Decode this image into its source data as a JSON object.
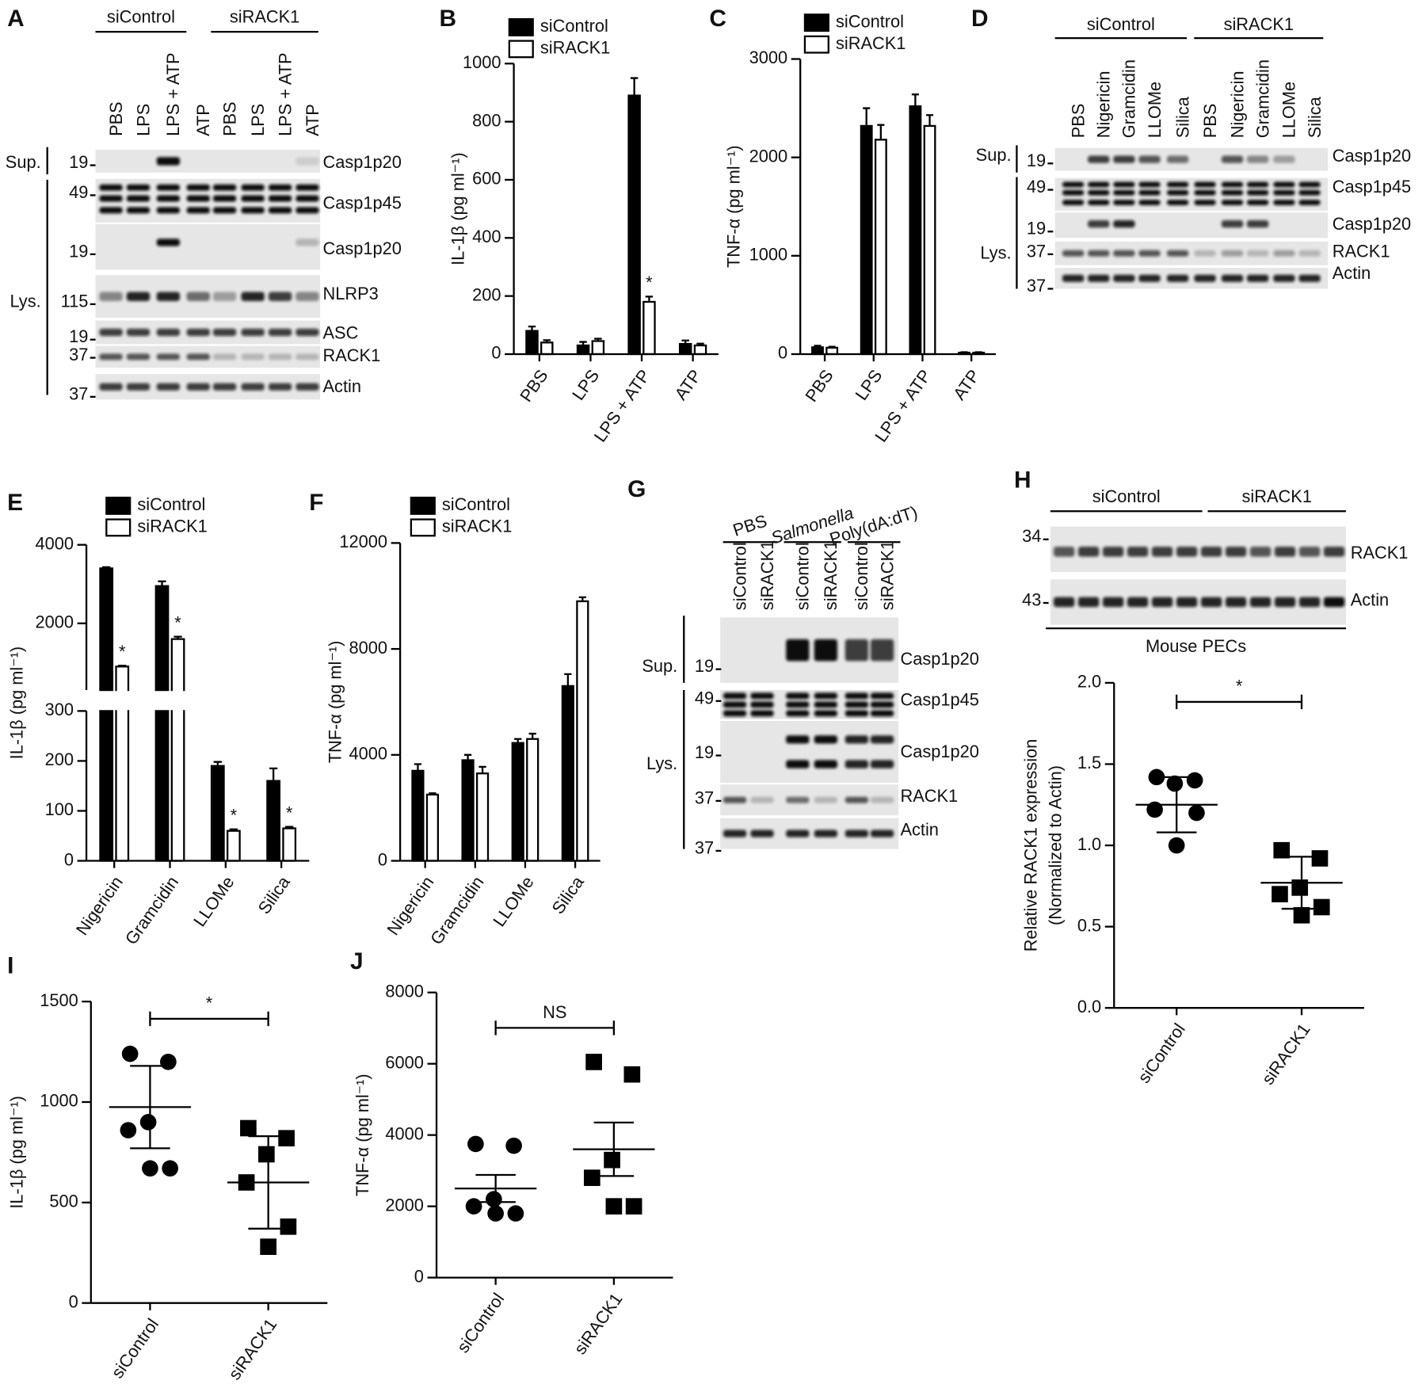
{
  "chart_data": [
    {
      "label": "B",
      "type": "bar",
      "y_label": "IL-1β (pg ml⁻¹)",
      "categories": [
        "PBS",
        "LPS",
        "LPS + ATP",
        "ATP"
      ],
      "series": [
        {
          "name": "siControl",
          "color": "#000000",
          "values": [
            80,
            30,
            890,
            35
          ],
          "errors": [
            15,
            12,
            60,
            12
          ]
        },
        {
          "name": "siRACK1",
          "color": "#ffffff",
          "values": [
            40,
            45,
            180,
            30
          ],
          "errors": [
            8,
            8,
            18,
            6
          ],
          "sig": [
            null,
            null,
            "*",
            null
          ]
        }
      ],
      "ylim": [
        0,
        1000
      ],
      "yticks": [
        0,
        200,
        400,
        600,
        800,
        1000
      ]
    },
    {
      "label": "C",
      "type": "bar",
      "y_label": "TNF-α (pg ml⁻¹)",
      "categories": [
        "PBS",
        "LPS",
        "LPS + ATP",
        "ATP"
      ],
      "series": [
        {
          "name": "siControl",
          "color": "#000000",
          "values": [
            70,
            2320,
            2520,
            15
          ],
          "errors": [
            15,
            180,
            120,
            5
          ]
        },
        {
          "name": "siRACK1",
          "color": "#ffffff",
          "values": [
            65,
            2180,
            2320,
            15
          ],
          "errors": [
            10,
            150,
            110,
            5
          ]
        }
      ],
      "ylim": [
        0,
        3000
      ],
      "yticks": [
        0,
        1000,
        2000,
        3000
      ]
    },
    {
      "label": "E",
      "type": "bar",
      "y_label": "IL-1β (pg ml⁻¹)",
      "categories": [
        "Nigericin",
        "Gramcidin",
        "LLOMe",
        "Silica"
      ],
      "series": [
        {
          "name": "siControl",
          "color": "#000000",
          "values": [
            3400,
            2950,
            190,
            160
          ],
          "errors": [
            30,
            120,
            8,
            25
          ]
        },
        {
          "name": "siRACK1",
          "color": "#ffffff",
          "values": [
            900,
            1600,
            60,
            65
          ],
          "errors": [
            20,
            60,
            3,
            3
          ],
          "sig": [
            "*",
            "*",
            "*",
            "*"
          ]
        }
      ],
      "ylim": [
        0,
        4000
      ],
      "ybreak": 300,
      "yticks": [
        0,
        100,
        200,
        300,
        2000,
        4000
      ]
    },
    {
      "label": "F",
      "type": "bar",
      "y_label": "TNF-α (pg ml⁻¹)",
      "categories": [
        "Nigericin",
        "Gramcidin",
        "LLOMe",
        "Silica"
      ],
      "series": [
        {
          "name": "siControl",
          "color": "#000000",
          "values": [
            3400,
            3800,
            4450,
            6600
          ],
          "errors": [
            250,
            200,
            150,
            450
          ]
        },
        {
          "name": "siRACK1",
          "color": "#ffffff",
          "values": [
            2500,
            3300,
            4600,
            9800
          ],
          "errors": [
            50,
            250,
            200,
            150
          ]
        }
      ],
      "ylim": [
        0,
        12000
      ],
      "yticks": [
        0,
        4000,
        8000,
        12000
      ]
    },
    {
      "type": "scatter",
      "y_label": [
        "Relative RACK1 expression",
        "(Normalized to Actin)"
      ],
      "categories": [
        "siControl",
        "siRACK1"
      ],
      "points": [
        [
          1.42,
          1.4,
          1.38,
          1.22,
          1.2,
          1.0
        ],
        [
          0.97,
          0.92,
          0.74,
          0.7,
          0.62,
          0.57
        ]
      ],
      "means": [
        1.25,
        0.77
      ],
      "errors": [
        0.17,
        0.16
      ],
      "significance": "*",
      "ylim": [
        0,
        2
      ],
      "yticks": [
        {
          "value": 0,
          "label": "0.0"
        },
        0.5,
        {
          "value": 1,
          "label": "1.0"
        },
        1.5,
        {
          "value": 2,
          "label": "2.0"
        }
      ]
    },
    {
      "label": "I",
      "type": "scatter",
      "y_label": "IL-1β (pg ml⁻¹)",
      "categories": [
        "siControl",
        "siRACK1"
      ],
      "points": [
        [
          1240,
          1200,
          900,
          860,
          670,
          670
        ],
        [
          870,
          820,
          740,
          600,
          380,
          280
        ]
      ],
      "means": [
        975,
        600
      ],
      "errors": [
        205,
        230
      ],
      "significance": "*",
      "ylim": [
        0,
        1500
      ],
      "yticks": [
        0,
        500,
        1000,
        1500
      ]
    },
    {
      "label": "J",
      "type": "scatter",
      "y_label": "TNF-α (pg ml⁻¹)",
      "categories": [
        "siControl",
        "siRACK1"
      ],
      "points": [
        [
          3750,
          3700,
          2200,
          2000,
          1800,
          1800
        ],
        [
          6050,
          5700,
          3300,
          2800,
          2000,
          2000
        ]
      ],
      "means": [
        2500,
        3600
      ],
      "errors": [
        380,
        750
      ],
      "significance": "NS",
      "ylim": [
        0,
        8000
      ],
      "yticks": [
        0,
        2000,
        4000,
        6000,
        8000
      ]
    }
  ],
  "blots": [
    {
      "label": "A",
      "groups": [
        "siControl",
        "siRACK1"
      ],
      "lanes": [
        "PBS",
        "LPS",
        "LPS + ATP",
        "ATP",
        "PBS",
        "LPS",
        "LPS + ATP",
        "ATP"
      ],
      "sections": [
        "Sup.",
        "Lys."
      ],
      "rows": [
        {
          "mw": "19",
          "name": "Casp1p20"
        },
        {
          "mw": "49",
          "name": "Casp1p45"
        },
        {
          "mw": "19",
          "name": "Casp1p20"
        },
        {
          "mw": "115",
          "name": "NLRP3"
        },
        {
          "mw": "19",
          "name": "ASC"
        },
        {
          "mw": "37",
          "name": "RACK1"
        },
        {
          "mw": "37",
          "name": "Actin"
        }
      ]
    },
    {
      "label": "D",
      "groups": [
        "siControl",
        "siRACK1"
      ],
      "lanes": [
        "PBS",
        "Nigericin",
        "Gramcidin",
        "LLOMe",
        "Silica",
        "PBS",
        "Nigericin",
        "Gramcidin",
        "LLOMe",
        "Silica"
      ],
      "sections": [
        "Sup.",
        "Lys."
      ],
      "rows": [
        {
          "mw": "19",
          "name": "Casp1p20"
        },
        {
          "mw": "49",
          "name": "Casp1p45"
        },
        {
          "mw": "19",
          "name": "Casp1p20"
        },
        {
          "mw": "37",
          "name": "RACK1"
        },
        {
          "mw": "37",
          "name": "Actin"
        }
      ]
    },
    {
      "label": "G",
      "groups": [
        "PBS",
        "Salmonella",
        "Poly(dA:dT)"
      ],
      "lanes": [
        "siControl",
        "siRACK1",
        "siControl",
        "siRACK1",
        "siControl",
        "siRACK1"
      ],
      "sections": [
        "Sup.",
        "Lys."
      ],
      "rows": [
        {
          "mw": "19",
          "name": "Casp1p20"
        },
        {
          "mw": "49",
          "name": "Casp1p45"
        },
        {
          "mw": "19",
          "name": "Casp1p20"
        },
        {
          "mw": "37",
          "name": "RACK1"
        },
        {
          "mw": "37",
          "name": "Actin"
        }
      ]
    },
    {
      "label": "H",
      "groups": [
        "siControl",
        "siRACK1"
      ],
      "rows": [
        {
          "mw": "34",
          "name": "RACK1"
        },
        {
          "mw": "43",
          "name": "Actin"
        }
      ],
      "caption": "Mouse PECs"
    }
  ]
}
